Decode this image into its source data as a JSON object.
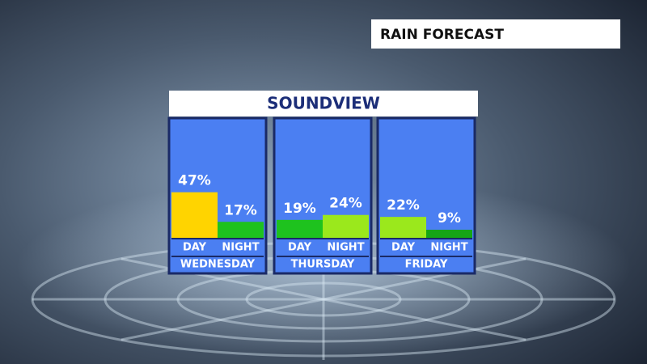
{
  "chart_data": {
    "type": "bar",
    "title": "RAIN FORECAST",
    "subtitle": "SOUNDVIEW",
    "groups": [
      {
        "name": "WEDNESDAY",
        "categories": [
          "DAY",
          "NIGHT"
        ],
        "values": [
          47,
          17
        ],
        "value_labels": [
          "47%",
          "17%"
        ],
        "colors": [
          "#ffd400",
          "#1ec21e"
        ]
      },
      {
        "name": "THURSDAY",
        "categories": [
          "DAY",
          "NIGHT"
        ],
        "values": [
          19,
          24
        ],
        "value_labels": [
          "19%",
          "24%"
        ],
        "colors": [
          "#1ec21e",
          "#9be81c"
        ]
      },
      {
        "name": "FRIDAY",
        "categories": [
          "DAY",
          "NIGHT"
        ],
        "values": [
          22,
          9
        ],
        "value_labels": [
          "22%",
          "9%"
        ],
        "colors": [
          "#9be81c",
          "#16a516"
        ]
      }
    ]
  }
}
